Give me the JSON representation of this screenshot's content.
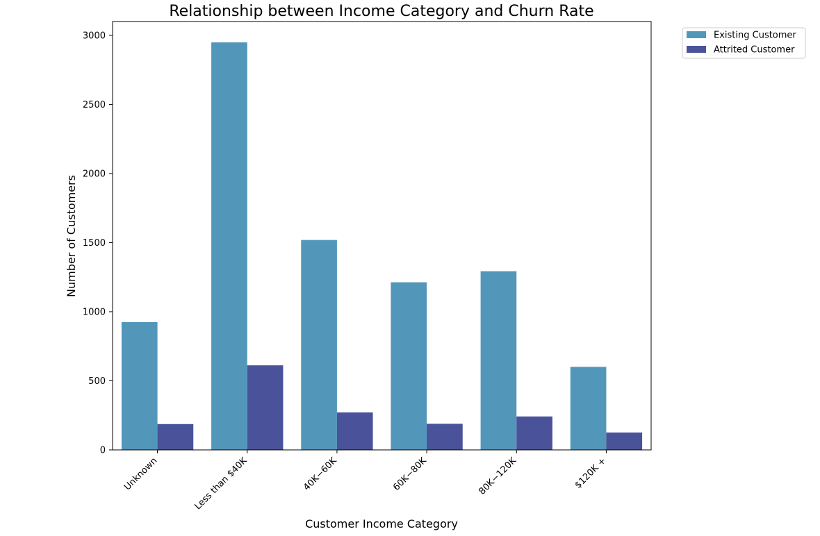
{
  "chart_data": {
    "type": "bar",
    "title": "Relationship between Income Category and Churn Rate",
    "xlabel": "Customer Income Category",
    "ylabel": "Number of Customers",
    "categories": [
      "Unknown",
      "Less than $40K",
      "$40K - $60K",
      "$60K - $80K",
      "$80K - $120K",
      "$120K +"
    ],
    "category_tick_labels": [
      "Unknown",
      "Less than $40K",
      "40K−60K",
      "60K−80K",
      "80K−120K",
      "$120K +"
    ],
    "series": [
      {
        "name": "Existing Customer",
        "color": "#5297ba",
        "values": [
          925,
          2949,
          1519,
          1213,
          1293,
          601
        ]
      },
      {
        "name": "Attrited Customer",
        "color": "#4a5299",
        "values": [
          187,
          612,
          271,
          189,
          242,
          126
        ]
      }
    ],
    "ylim": [
      0,
      3100
    ],
    "yticks": [
      0,
      500,
      1000,
      1500,
      2000,
      2500,
      3000
    ],
    "grid": false,
    "legend_position": "outside-top-right"
  }
}
